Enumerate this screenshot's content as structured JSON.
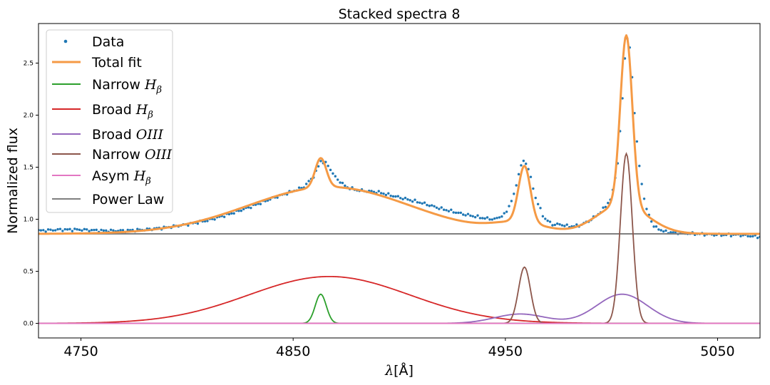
{
  "chart_data": {
    "type": "line",
    "title": "Stacked spectra 8",
    "xlabel_symbol": "λ",
    "xlabel_unit": "[Å]",
    "ylabel": "Normalized flux",
    "xlim": [
      4730,
      5070
    ],
    "ylim": [
      -0.14,
      2.88
    ],
    "x_ticks": [
      4750,
      4850,
      4950,
      5050
    ],
    "y_ticks": [
      0.0,
      0.5,
      1.0,
      1.5,
      2.0,
      2.5
    ],
    "y_tick_labels": [
      "0.0",
      "0.5",
      "1.0",
      "1.5",
      "2.0",
      "2.5"
    ],
    "grid": false,
    "legend_position": "upper-left",
    "colors": {
      "data": "#1f77b4",
      "total_fit": "#f59a45",
      "narrow_hb": "#2ca02c",
      "broad_hb": "#d62728",
      "broad_oiii": "#9467bd",
      "narrow_oiii": "#8c564b",
      "asym_hb": "#e377c2",
      "power_law": "#7f7f7f"
    },
    "legend": [
      {
        "key": "data",
        "label": "Data",
        "italic": "",
        "sub": "",
        "marker": "dot"
      },
      {
        "key": "total_fit",
        "label": "Total fit",
        "italic": "",
        "sub": "",
        "marker": "thick"
      },
      {
        "key": "narrow_hb",
        "label": "Narrow ",
        "italic": "H",
        "sub": "β",
        "marker": "line"
      },
      {
        "key": "broad_hb",
        "label": "Broad ",
        "italic": "H",
        "sub": "β",
        "marker": "line"
      },
      {
        "key": "broad_oiii",
        "label": "Broad ",
        "italic": "OIII",
        "sub": "",
        "marker": "line"
      },
      {
        "key": "narrow_oiii",
        "label": "Narrow ",
        "italic": "OIII",
        "sub": "",
        "marker": "line"
      },
      {
        "key": "asym_hb",
        "label": "Asym ",
        "italic": "H",
        "sub": "β",
        "marker": "line"
      },
      {
        "key": "power_law",
        "label": "Power Law",
        "italic": "",
        "sub": "",
        "marker": "line"
      }
    ],
    "series": [
      {
        "name": "Power Law",
        "key": "power_law",
        "model": "constant",
        "level": 0.86
      },
      {
        "name": "Broad Hβ",
        "key": "broad_hb",
        "model": "gaussian",
        "amp": 0.45,
        "center": 4867,
        "sigma": 38
      },
      {
        "name": "Narrow Hβ",
        "key": "narrow_hb",
        "model": "gaussian",
        "amp": 0.28,
        "center": 4863,
        "sigma": 2.6
      },
      {
        "name": "Broad OIII",
        "key": "broad_oiii",
        "components": [
          {
            "model": "gaussian",
            "amp": 0.09,
            "center": 4957,
            "sigma": 12
          },
          {
            "model": "gaussian",
            "amp": 0.28,
            "center": 5005,
            "sigma": 12
          }
        ]
      },
      {
        "name": "Narrow OIII",
        "key": "narrow_oiii",
        "components": [
          {
            "model": "gaussian",
            "amp": 0.54,
            "center": 4959,
            "sigma": 2.8
          },
          {
            "model": "gaussian",
            "amp": 1.63,
            "center": 5007,
            "sigma": 2.8
          }
        ]
      },
      {
        "name": "Asym Hβ",
        "key": "asym_hb",
        "model": "constant",
        "level": 0.0
      }
    ],
    "data_points": {
      "x_start": 4730,
      "x_end": 5070,
      "samples": 300,
      "x": [
        4730,
        4740,
        4750,
        4760,
        4770,
        4780,
        4790,
        4800,
        4810,
        4820,
        4830,
        4840,
        4850,
        4855,
        4860,
        4863,
        4866,
        4870,
        4875,
        4880,
        4890,
        4900,
        4910,
        4920,
        4930,
        4940,
        4945,
        4950,
        4954,
        4957,
        4959,
        4961,
        4964,
        4968,
        4972,
        4976,
        4980,
        4985,
        4990,
        4995,
        5000,
        5003,
        5005,
        5007,
        5009,
        5011,
        5013,
        5016,
        5020,
        5025,
        5030,
        5040,
        5050,
        5060,
        5070
      ],
      "y": [
        0.89,
        0.9,
        0.9,
        0.89,
        0.89,
        0.9,
        0.92,
        0.95,
        0.99,
        1.05,
        1.12,
        1.2,
        1.27,
        1.31,
        1.42,
        1.56,
        1.53,
        1.4,
        1.31,
        1.28,
        1.26,
        1.21,
        1.16,
        1.1,
        1.05,
        1.01,
        1.0,
        1.05,
        1.23,
        1.5,
        1.57,
        1.48,
        1.22,
        1.02,
        0.95,
        0.95,
        0.93,
        0.94,
        0.99,
        1.07,
        1.2,
        1.55,
        2.1,
        2.78,
        2.6,
        1.98,
        1.52,
        1.12,
        0.93,
        0.88,
        0.87,
        0.86,
        0.85,
        0.85,
        0.83
      ]
    }
  }
}
